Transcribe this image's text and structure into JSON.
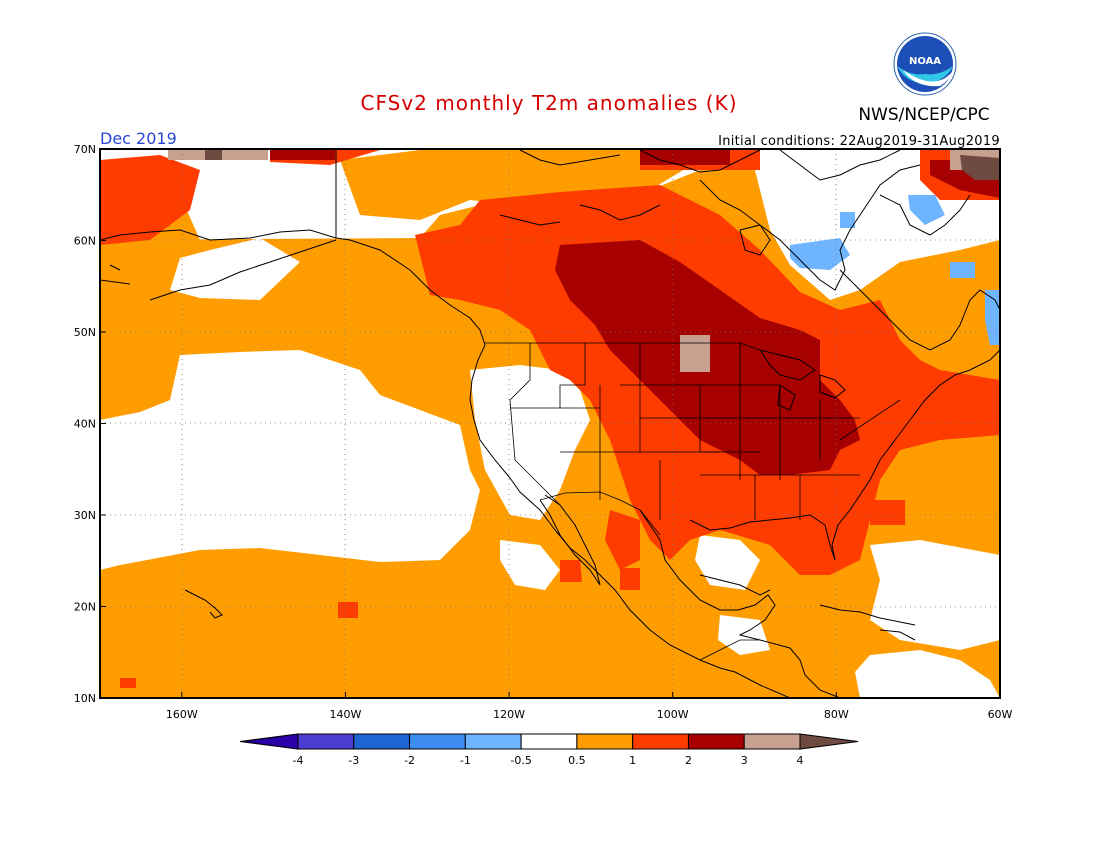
{
  "title": "CFSv2 monthly T2m anomalies (K)",
  "agency": "NWS/NCEP/CPC",
  "logo_text": "NOAA",
  "valid_month": "Dec 2019",
  "initial_conditions": "Initial conditions: 22Aug2019-31Aug2019",
  "colors": {
    "title": "#d40000",
    "valid_month": "#2846d8",
    "neutral": "#ffffff",
    "warm_0_5_1": "#ff9d00",
    "warm_1_2": "#ff3c00",
    "warm_2_3": "#a70000",
    "warm_3_4": "#c8a090",
    "warm_gt_4": "#6e4a40",
    "cool_0_5_1": "#6fb4ff",
    "cool_1_2": "#3d8cf0",
    "cool_2_3": "#1e64d2",
    "cool_3_4": "#4b3dd2",
    "cool_lt_4": "#2a00a8"
  },
  "chart_data": {
    "type": "heatmap",
    "title": "CFSv2 monthly T2m anomalies (K)",
    "units": "K",
    "lon_range": [
      -170,
      -60
    ],
    "lat_range": [
      10,
      70
    ],
    "x_ticks": [
      {
        "value": -160,
        "label": "160W"
      },
      {
        "value": -140,
        "label": "140W"
      },
      {
        "value": -120,
        "label": "120W"
      },
      {
        "value": -100,
        "label": "100W"
      },
      {
        "value": -80,
        "label": "80W"
      },
      {
        "value": -60,
        "label": "60W"
      }
    ],
    "y_ticks": [
      {
        "value": 10,
        "label": "10N"
      },
      {
        "value": 20,
        "label": "20N"
      },
      {
        "value": 30,
        "label": "30N"
      },
      {
        "value": 40,
        "label": "40N"
      },
      {
        "value": 50,
        "label": "50N"
      },
      {
        "value": 60,
        "label": "60N"
      },
      {
        "value": 70,
        "label": "70N"
      }
    ],
    "grid": true,
    "colorbar": {
      "levels": [
        "-4",
        "-3",
        "-2",
        "-1",
        "-0.5",
        "0.5",
        "1",
        "2",
        "3",
        "4"
      ],
      "colors": [
        "#2a00a8",
        "#4b3dd2",
        "#1e64d2",
        "#3d8cf0",
        "#6fb4ff",
        "#ffffff",
        "#ff9d00",
        "#ff3c00",
        "#a70000",
        "#c8a090",
        "#6e4a40"
      ]
    },
    "categories": [
      {
        "name": "< -4",
        "color": "#2a00a8"
      },
      {
        "name": "-4 to -3",
        "color": "#4b3dd2"
      },
      {
        "name": "-3 to -2",
        "color": "#1e64d2"
      },
      {
        "name": "-2 to -1",
        "color": "#3d8cf0"
      },
      {
        "name": "-1 to -0.5",
        "color": "#6fb4ff"
      },
      {
        "name": "-0.5 to 0.5",
        "color": "#ffffff"
      },
      {
        "name": "0.5 to 1",
        "color": "#ff9d00"
      },
      {
        "name": "1 to 2",
        "color": "#ff3c00"
      },
      {
        "name": "2 to 3",
        "color": "#a70000"
      },
      {
        "name": "3 to 4",
        "color": "#c8a090"
      },
      {
        "name": "> 4",
        "color": "#6e4a40"
      }
    ]
  }
}
